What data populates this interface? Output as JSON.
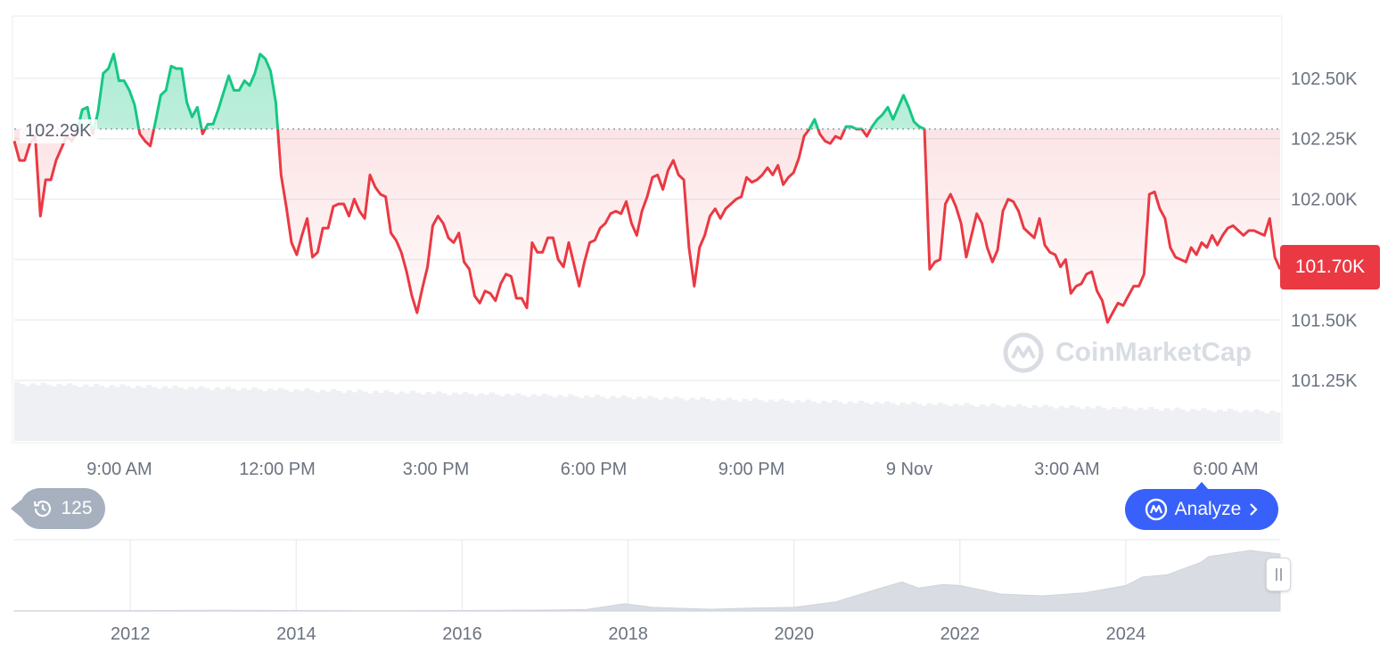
{
  "chart_data": [
    {
      "type": "line",
      "x_ticks": [
        "9:00 AM",
        "12:00 PM",
        "3:00 PM",
        "6:00 PM",
        "9:00 PM",
        "9 Nov",
        "3:00 AM",
        "6:00 AM"
      ],
      "y_ticks": [
        "102.50K",
        "102.25K",
        "102.00K",
        "101.50K",
        "101.25K"
      ],
      "ylim": [
        101000,
        102750
      ],
      "reference_value": 102290,
      "reference_label": "102.29K",
      "current_value": 101700,
      "current_label": "101.70K",
      "grid": true,
      "series": [
        {
          "values": [
            102240,
            102160,
            102160,
            102230,
            102260,
            101930,
            102080,
            102080,
            102160,
            102210,
            102260,
            102240,
            102280,
            102370,
            102380,
            102270,
            102360,
            102520,
            102540,
            102600,
            102490,
            102490,
            102450,
            102390,
            102270,
            102240,
            102220,
            102320,
            102430,
            102450,
            102550,
            102540,
            102540,
            102400,
            102340,
            102380,
            102270,
            102310,
            102310,
            102370,
            102440,
            102510,
            102450,
            102450,
            102490,
            102470,
            102520,
            102600,
            102580,
            102530,
            102400,
            102100,
            101970,
            101820,
            101770,
            101850,
            101920,
            101760,
            101780,
            101880,
            101880,
            101970,
            101980,
            101980,
            101930,
            102000,
            101950,
            101920,
            102100,
            102050,
            102020,
            102010,
            101860,
            101830,
            101780,
            101700,
            101600,
            101530,
            101630,
            101720,
            101890,
            101930,
            101900,
            101840,
            101820,
            101860,
            101740,
            101710,
            101600,
            101570,
            101620,
            101610,
            101580,
            101650,
            101690,
            101680,
            101590,
            101590,
            101550,
            101820,
            101780,
            101780,
            101840,
            101840,
            101750,
            101720,
            101820,
            101730,
            101640,
            101740,
            101820,
            101830,
            101880,
            101900,
            101940,
            101950,
            101940,
            101990,
            101900,
            101850,
            101950,
            102010,
            102090,
            102100,
            102040,
            102120,
            102160,
            102100,
            102080,
            101800,
            101640,
            101800,
            101850,
            101930,
            101960,
            101920,
            101960,
            101980,
            102000,
            102010,
            102090,
            102070,
            102080,
            102100,
            102130,
            102100,
            102140,
            102060,
            102090,
            102110,
            102170,
            102260,
            102290,
            102330,
            102270,
            102240,
            102230,
            102260,
            102250,
            102300,
            102300,
            102290,
            102290,
            102260,
            102300,
            102330,
            102350,
            102380,
            102330,
            102380,
            102430,
            102380,
            102320,
            102300,
            102290,
            101710,
            101740,
            101750,
            101980,
            102020,
            101970,
            101900,
            101760,
            101850,
            101940,
            101900,
            101800,
            101740,
            101790,
            101950,
            102000,
            101990,
            101950,
            101880,
            101860,
            101840,
            101920,
            101810,
            101780,
            101770,
            101720,
            101750,
            101610,
            101640,
            101650,
            101690,
            101700,
            101620,
            101580,
            101490,
            101530,
            101570,
            101560,
            101600,
            101640,
            101640,
            101690,
            102020,
            102030,
            101960,
            101920,
            101800,
            101760,
            101750,
            101740,
            101800,
            101770,
            101820,
            101800,
            101850,
            101810,
            101850,
            101880,
            101890,
            101870,
            101850,
            101870,
            101870,
            101860,
            101850,
            101920,
            101760,
            101710
          ],
          "color": "#ea3943",
          "color_above": "#16c784"
        }
      ]
    },
    {
      "type": "area",
      "x_ticks": [
        "2012",
        "2014",
        "2016",
        "2018",
        "2020",
        "2022",
        "2024"
      ],
      "xlim": [
        2010.6,
        2025.86
      ],
      "series": [
        {
          "x": [
            2010.6,
            2012,
            2013,
            2014,
            2015,
            2016,
            2017,
            2017.5,
            2017.96,
            2018.3,
            2019,
            2019.5,
            2020,
            2020.5,
            2021,
            2021.3,
            2021.5,
            2021.8,
            2022,
            2022.5,
            2023,
            2023.5,
            2024,
            2024.2,
            2024.5,
            2024.9,
            2025,
            2025.5,
            2025.86
          ],
          "values": [
            0.3,
            0.6,
            1.2,
            0.8,
            0.5,
            0.7,
            1.5,
            2.5,
            12,
            6,
            3,
            5,
            6,
            15,
            36,
            48,
            38,
            44,
            42,
            28,
            25,
            30,
            42,
            56,
            60,
            80,
            90,
            100,
            94
          ],
          "color": "#d9dde3"
        }
      ]
    }
  ],
  "controls": {
    "history_count": "125",
    "analyze_label": "Analyze",
    "watermark": "CoinMarketCap"
  },
  "icons": {
    "history": "history-icon",
    "analyze": "analyze-icon",
    "chevron": "chevron-right-icon",
    "handle": "pause-handle-icon"
  }
}
